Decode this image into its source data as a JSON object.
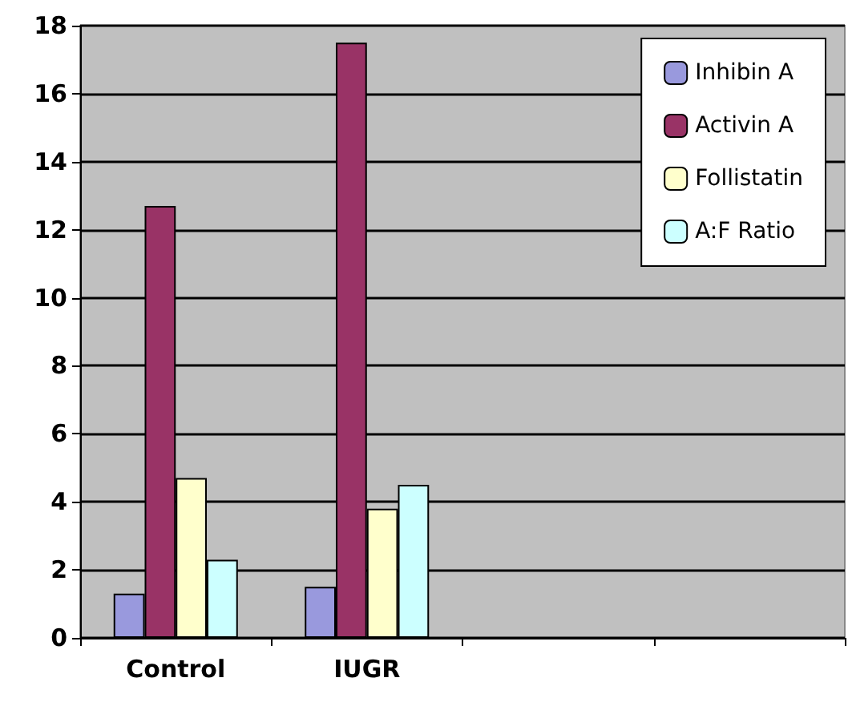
{
  "chart_data": {
    "type": "bar",
    "categories": [
      "Control",
      "IUGR",
      null,
      null
    ],
    "series": [
      {
        "name": "Inhibin A",
        "color": "#9999dd",
        "values": [
          1.3,
          1.5,
          null,
          null
        ]
      },
      {
        "name": "Activin A",
        "color": "#993366",
        "values": [
          12.7,
          17.5,
          null,
          null
        ]
      },
      {
        "name": "Follistatin",
        "color": "#ffffcc",
        "values": [
          4.7,
          3.8,
          null,
          null
        ]
      },
      {
        "name": "A:F Ratio",
        "color": "#ccffff",
        "values": [
          2.3,
          4.5,
          null,
          null
        ]
      }
    ],
    "ylim": [
      0,
      18
    ],
    "yticks": [
      0,
      2,
      4,
      6,
      8,
      10,
      12,
      14,
      16,
      18
    ],
    "grid": "y",
    "legend": "top right"
  }
}
